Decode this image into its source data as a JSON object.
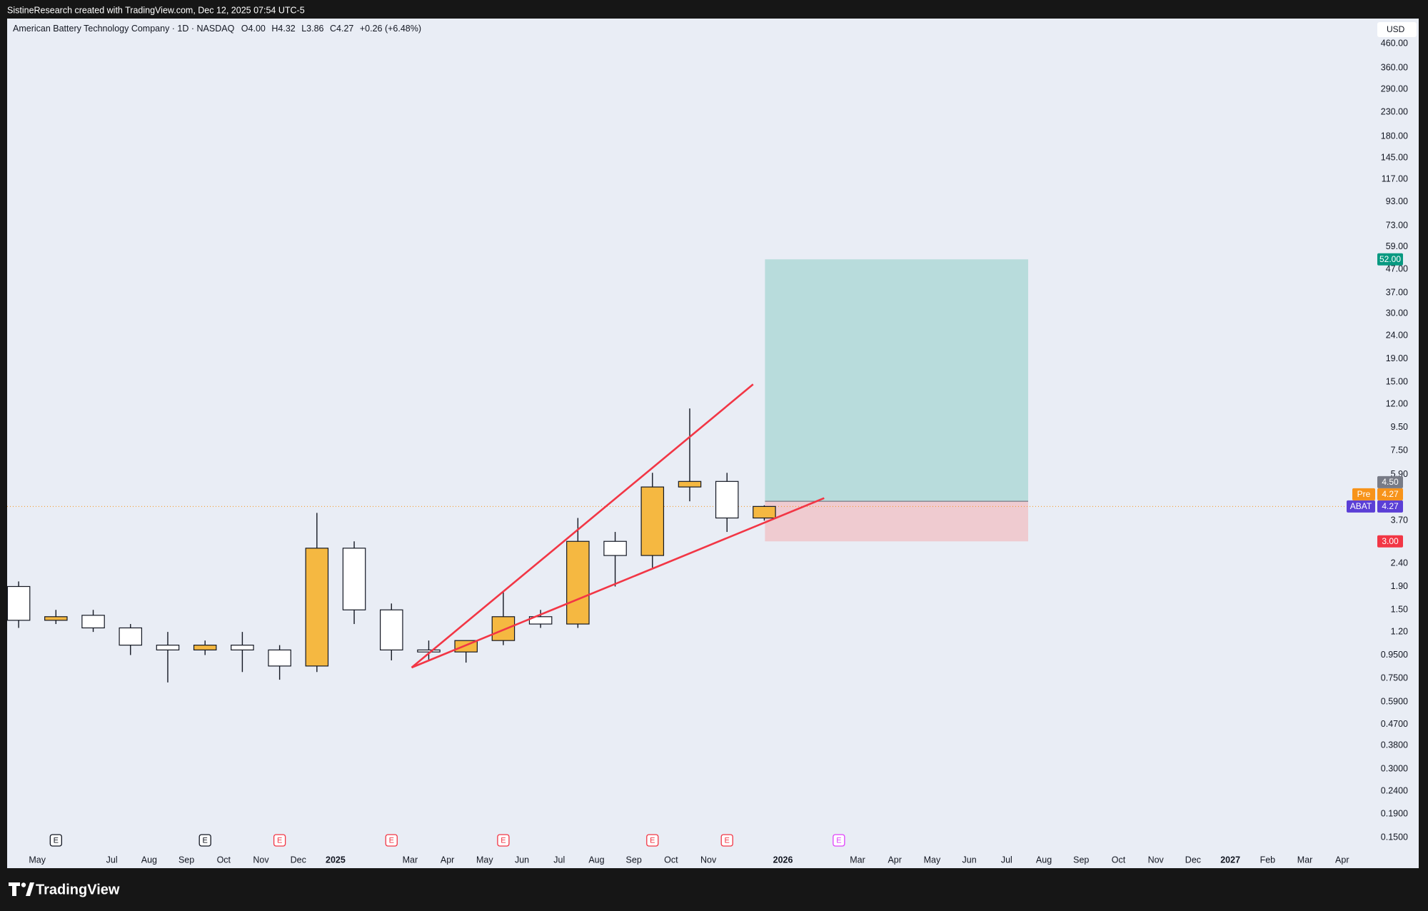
{
  "header": {
    "text": "SistineResearch created with TradingView.com, Dec 12, 2025 07:54 UTC-5"
  },
  "chart_data": {
    "type": "candlestick",
    "title": "American Battery Technology Company · 1D · NASDAQ",
    "ohlc_legend": [
      {
        "key": "O",
        "value": "4.00"
      },
      {
        "key": "H",
        "value": "4.32"
      },
      {
        "key": "L",
        "value": "3.86"
      },
      {
        "key": "C",
        "value": "4.27"
      }
    ],
    "change": "+0.26 (+6.48%)",
    "currency": "USD",
    "log_scale": true,
    "grid": false,
    "x": [
      "2024-04",
      "2024-05",
      "2024-06",
      "2024-07",
      "2024-08",
      "2024-09",
      "2024-10",
      "2024-11",
      "2024-12",
      "2025-01",
      "2025-02",
      "2025-03",
      "2025-04",
      "2025-05",
      "2025-06",
      "2025-07",
      "2025-08",
      "2025-09",
      "2025-10",
      "2025-11",
      "2025-12"
    ],
    "open": [
      1.9,
      1.35,
      1.42,
      1.25,
      1.05,
      1.0,
      1.05,
      1.0,
      0.85,
      2.8,
      1.5,
      1.0,
      0.98,
      1.1,
      1.4,
      1.3,
      3.0,
      2.6,
      5.2,
      5.5,
      3.8
    ],
    "high": [
      2.0,
      1.5,
      1.5,
      1.3,
      1.2,
      1.1,
      1.2,
      1.05,
      4.0,
      3.0,
      1.6,
      1.1,
      1.1,
      1.8,
      1.5,
      3.8,
      3.3,
      6.0,
      11.5,
      6.0,
      4.32
    ],
    "low": [
      1.25,
      1.3,
      1.2,
      0.95,
      0.72,
      0.95,
      0.8,
      0.74,
      0.8,
      1.3,
      0.9,
      0.9,
      0.88,
      1.05,
      1.25,
      1.25,
      1.9,
      2.3,
      4.5,
      3.3,
      3.7
    ],
    "close": [
      1.35,
      1.4,
      1.25,
      1.05,
      1.0,
      1.05,
      1.0,
      0.85,
      2.8,
      1.5,
      1.0,
      0.98,
      1.1,
      1.4,
      1.3,
      3.0,
      2.6,
      5.2,
      5.5,
      3.8,
      4.27
    ],
    "up_color": "#f5b841",
    "down_color": "#ffffff",
    "wick_color": "#131722",
    "xlim": [
      "2024-04",
      "2027-05"
    ],
    "xticks": [
      {
        "value": "2024-05",
        "label": "May"
      },
      {
        "value": "2024-07",
        "label": "Jul"
      },
      {
        "value": "2024-08",
        "label": "Aug"
      },
      {
        "value": "2024-09",
        "label": "Sep"
      },
      {
        "value": "2024-10",
        "label": "Oct"
      },
      {
        "value": "2024-11",
        "label": "Nov"
      },
      {
        "value": "2024-12",
        "label": "Dec"
      },
      {
        "value": "2025-01",
        "label": "2025"
      },
      {
        "value": "2025-03",
        "label": "Mar"
      },
      {
        "value": "2025-04",
        "label": "Apr"
      },
      {
        "value": "2025-05",
        "label": "May"
      },
      {
        "value": "2025-06",
        "label": "Jun"
      },
      {
        "value": "2025-07",
        "label": "Jul"
      },
      {
        "value": "2025-08",
        "label": "Aug"
      },
      {
        "value": "2025-09",
        "label": "Sep"
      },
      {
        "value": "2025-10",
        "label": "Oct"
      },
      {
        "value": "2025-11",
        "label": "Nov"
      },
      {
        "value": "2026-01",
        "label": "2026"
      },
      {
        "value": "2026-03",
        "label": "Mar"
      },
      {
        "value": "2026-04",
        "label": "Apr"
      },
      {
        "value": "2026-05",
        "label": "May"
      },
      {
        "value": "2026-06",
        "label": "Jun"
      },
      {
        "value": "2026-07",
        "label": "Jul"
      },
      {
        "value": "2026-08",
        "label": "Aug"
      },
      {
        "value": "2026-09",
        "label": "Sep"
      },
      {
        "value": "2026-10",
        "label": "Oct"
      },
      {
        "value": "2026-11",
        "label": "Nov"
      },
      {
        "value": "2026-12",
        "label": "Dec"
      },
      {
        "value": "2027-01",
        "label": "2027"
      },
      {
        "value": "2027-02",
        "label": "Feb"
      },
      {
        "value": "2027-03",
        "label": "Mar"
      },
      {
        "value": "2027-04",
        "label": "Apr"
      }
    ],
    "ylim": [
      0.11,
      594
    ],
    "yticks": [
      {
        "value": 460,
        "label": "460.00"
      },
      {
        "value": 360,
        "label": "360.00"
      },
      {
        "value": 290,
        "label": "290.00"
      },
      {
        "value": 230,
        "label": "230.00"
      },
      {
        "value": 180,
        "label": "180.00"
      },
      {
        "value": 145,
        "label": "145.00"
      },
      {
        "value": 117,
        "label": "117.00"
      },
      {
        "value": 93,
        "label": "93.00"
      },
      {
        "value": 73,
        "label": "73.00"
      },
      {
        "value": 59,
        "label": "59.00"
      },
      {
        "value": 47,
        "label": "47.00"
      },
      {
        "value": 37,
        "label": "37.00"
      },
      {
        "value": 30,
        "label": "30.00"
      },
      {
        "value": 24,
        "label": "24.00"
      },
      {
        "value": 19,
        "label": "19.00"
      },
      {
        "value": 15,
        "label": "15.00"
      },
      {
        "value": 12,
        "label": "12.00"
      },
      {
        "value": 9.5,
        "label": "9.50"
      },
      {
        "value": 7.5,
        "label": "7.50"
      },
      {
        "value": 5.9,
        "label": "5.90"
      },
      {
        "value": 3.7,
        "label": "3.70"
      },
      {
        "value": 2.4,
        "label": "2.40"
      },
      {
        "value": 1.9,
        "label": "1.90"
      },
      {
        "value": 1.5,
        "label": "1.50"
      },
      {
        "value": 1.2,
        "label": "1.20"
      },
      {
        "value": 0.95,
        "label": "0.9500"
      },
      {
        "value": 0.75,
        "label": "0.7500"
      },
      {
        "value": 0.59,
        "label": "0.5900"
      },
      {
        "value": 0.47,
        "label": "0.4700"
      },
      {
        "value": 0.38,
        "label": "0.3800"
      },
      {
        "value": 0.3,
        "label": "0.3000"
      },
      {
        "value": 0.24,
        "label": "0.2400"
      },
      {
        "value": 0.19,
        "label": "0.1900"
      },
      {
        "value": 0.15,
        "label": "0.1500"
      }
    ],
    "price_labels": [
      {
        "name": "ABAT",
        "value": 4.27,
        "color": "#5b3fd6"
      },
      {
        "name": "Pre",
        "value": 4.27,
        "color": "#f7931a"
      }
    ],
    "position": {
      "target": {
        "value": 52,
        "label": "52.00",
        "color": "#089981",
        "fill": "#b8dcdc"
      },
      "entry": {
        "value": 4.5,
        "label": "4.50",
        "color": "#787b86"
      },
      "stop": {
        "value": 3,
        "label": "3.00",
        "color": "#f23645",
        "fill": "#efcbd0"
      }
    },
    "events": [
      {
        "x": "2024-05",
        "label": "E",
        "color": "#131722"
      },
      {
        "x": "2024-09",
        "label": "E",
        "color": "#131722"
      },
      {
        "x": "2024-11",
        "label": "E",
        "color": "#f23645"
      },
      {
        "x": "2025-02",
        "label": "E",
        "color": "#f23645"
      },
      {
        "x": "2025-05",
        "label": "E",
        "color": "#f23645"
      },
      {
        "x": "2025-09",
        "label": "E",
        "color": "#f23645"
      },
      {
        "x": "2025-11",
        "label": "E",
        "color": "#f23645"
      },
      {
        "x": "2026-02",
        "label": "E",
        "color": "#e040fb"
      }
    ]
  },
  "footer": {
    "brand": "TradingView"
  }
}
